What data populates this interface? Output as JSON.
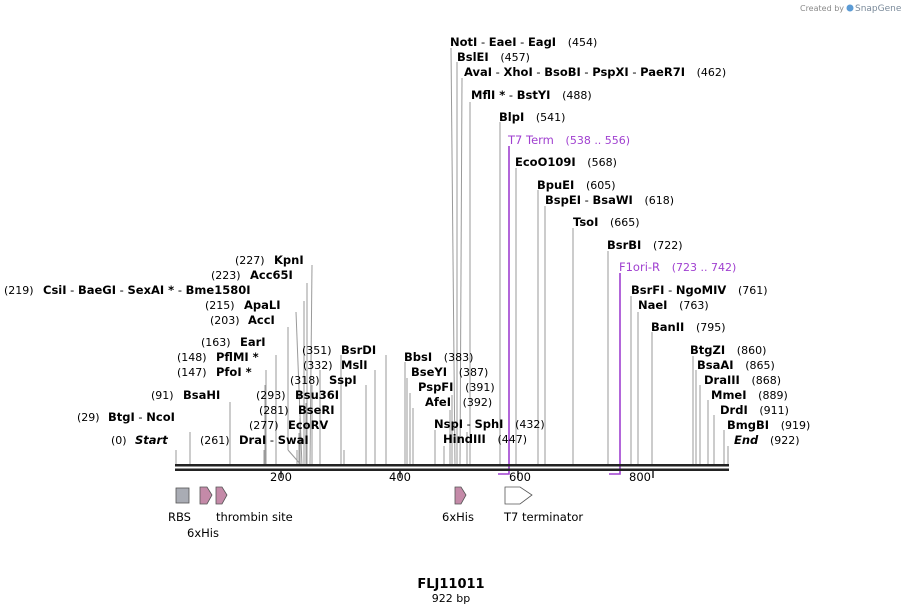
{
  "brand": {
    "text": "Created by",
    "name": "SnapGene"
  },
  "title": "FLJ11011",
  "subtitle": "922 bp",
  "ruler_ticks": [
    "200",
    "400",
    "600",
    "800"
  ],
  "features": {
    "rbs": "RBS",
    "his_left": "6xHis",
    "thrombin": "thrombin site",
    "his_right": "6xHis",
    "t7_terminator": "T7 terminator"
  },
  "labels": {
    "notI": "NotI",
    "eaeI": "EaeI",
    "eagI": "EagI",
    "pos_454": "(454)",
    "bslEI": "BslEI",
    "pos_457": "(457)",
    "avaI": "AvaI",
    "xhoI": "XhoI",
    "bsoBI": "BsoBI",
    "pspXI": "PspXI",
    "paeR7I": "PaeR7I",
    "pos_462": "(462)",
    "mflI": "MflI *",
    "bstYI": "BstYI",
    "pos_488": "(488)",
    "blpI": "BlpI",
    "pos_541": "(541)",
    "t7term": "T7 Term",
    "pos_t7term": "(538 .. 556)",
    "ecoO109I": "EcoO109I",
    "pos_568": "(568)",
    "bpuEI": "BpuEI",
    "pos_605": "(605)",
    "bspEI": "BspEI",
    "bsaWI": "BsaWI",
    "pos_618": "(618)",
    "tsoI": "TsoI",
    "pos_665": "(665)",
    "bsrBI": "BsrBI",
    "pos_722": "(722)",
    "f1oriR": "F1ori-R",
    "pos_f1ori": "(723 .. 742)",
    "bsrFI": "BsrFI",
    "ngoMIV": "NgoMIV",
    "pos_761": "(761)",
    "naeI": "NaeI",
    "pos_763": "(763)",
    "banII": "BanII",
    "pos_795": "(795)",
    "btgZI": "BtgZI",
    "pos_860": "(860)",
    "bsaAI": "BsaAI",
    "pos_865": "(865)",
    "draIII": "DraIII",
    "pos_868": "(868)",
    "mmeI": "MmeI",
    "pos_889": "(889)",
    "drdI": "DrdI",
    "pos_911": "(911)",
    "bmgBI": "BmgBI",
    "pos_919": "(919)",
    "end": "End",
    "pos_922": "(922)",
    "pos_227": "(227)",
    "kpnI": "KpnI",
    "pos_223": "(223)",
    "acc65I": "Acc65I",
    "pos_219": "(219)",
    "csiI": "CsiI",
    "baeGI": "BaeGI",
    "sexAI": "SexAI *",
    "bme1580I": "Bme1580I",
    "pos_215": "(215)",
    "apaLI": "ApaLI",
    "pos_203": "(203)",
    "accI": "AccI",
    "pos_163": "(163)",
    "earI": "EarI",
    "pos_148": "(148)",
    "pflMI": "PflMI *",
    "pos_147": "(147)",
    "pfoI": "PfoI *",
    "pos_91": "(91)",
    "bsaHI": "BsaHI",
    "pos_29": "(29)",
    "btgI": "BtgI",
    "ncoI": "NcoI",
    "pos_0": "(0)",
    "start": "Start",
    "pos_261": "(261)",
    "draI": "DraI",
    "swaI": "SwaI",
    "pos_277": "(277)",
    "ecoRV": "EcoRV",
    "pos_281": "(281)",
    "bseRI": "BseRI",
    "pos_293": "(293)",
    "bsu36I": "Bsu36I",
    "pos_318": "(318)",
    "sspI": "SspI",
    "pos_332": "(332)",
    "mslI": "MslI",
    "pos_351": "(351)",
    "bsrDI": "BsrDI",
    "bbsI": "BbsI",
    "pos_383": "(383)",
    "bseYI": "BseYI",
    "pos_387": "(387)",
    "pspFI": "PspFI",
    "pos_391": "(391)",
    "afeI": "AfeI",
    "pos_392": "(392)",
    "nspI": "NspI",
    "sphI": "SphI",
    "pos_432": "(432)",
    "hindIII": "HindIII",
    "pos_447": "(447)"
  }
}
